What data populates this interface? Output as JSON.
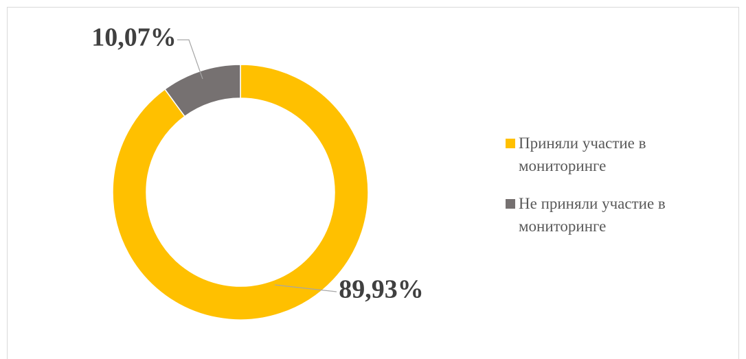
{
  "chart_data": {
    "type": "donut",
    "categories": [
      "Приняли участие в мониторинге",
      "Не приняли участие в мониторинге"
    ],
    "values": [
      89.93,
      10.07
    ],
    "value_labels": [
      "89,93%",
      "10,07%"
    ],
    "colors": [
      "#ffc000",
      "#767171"
    ],
    "legend": "right"
  }
}
